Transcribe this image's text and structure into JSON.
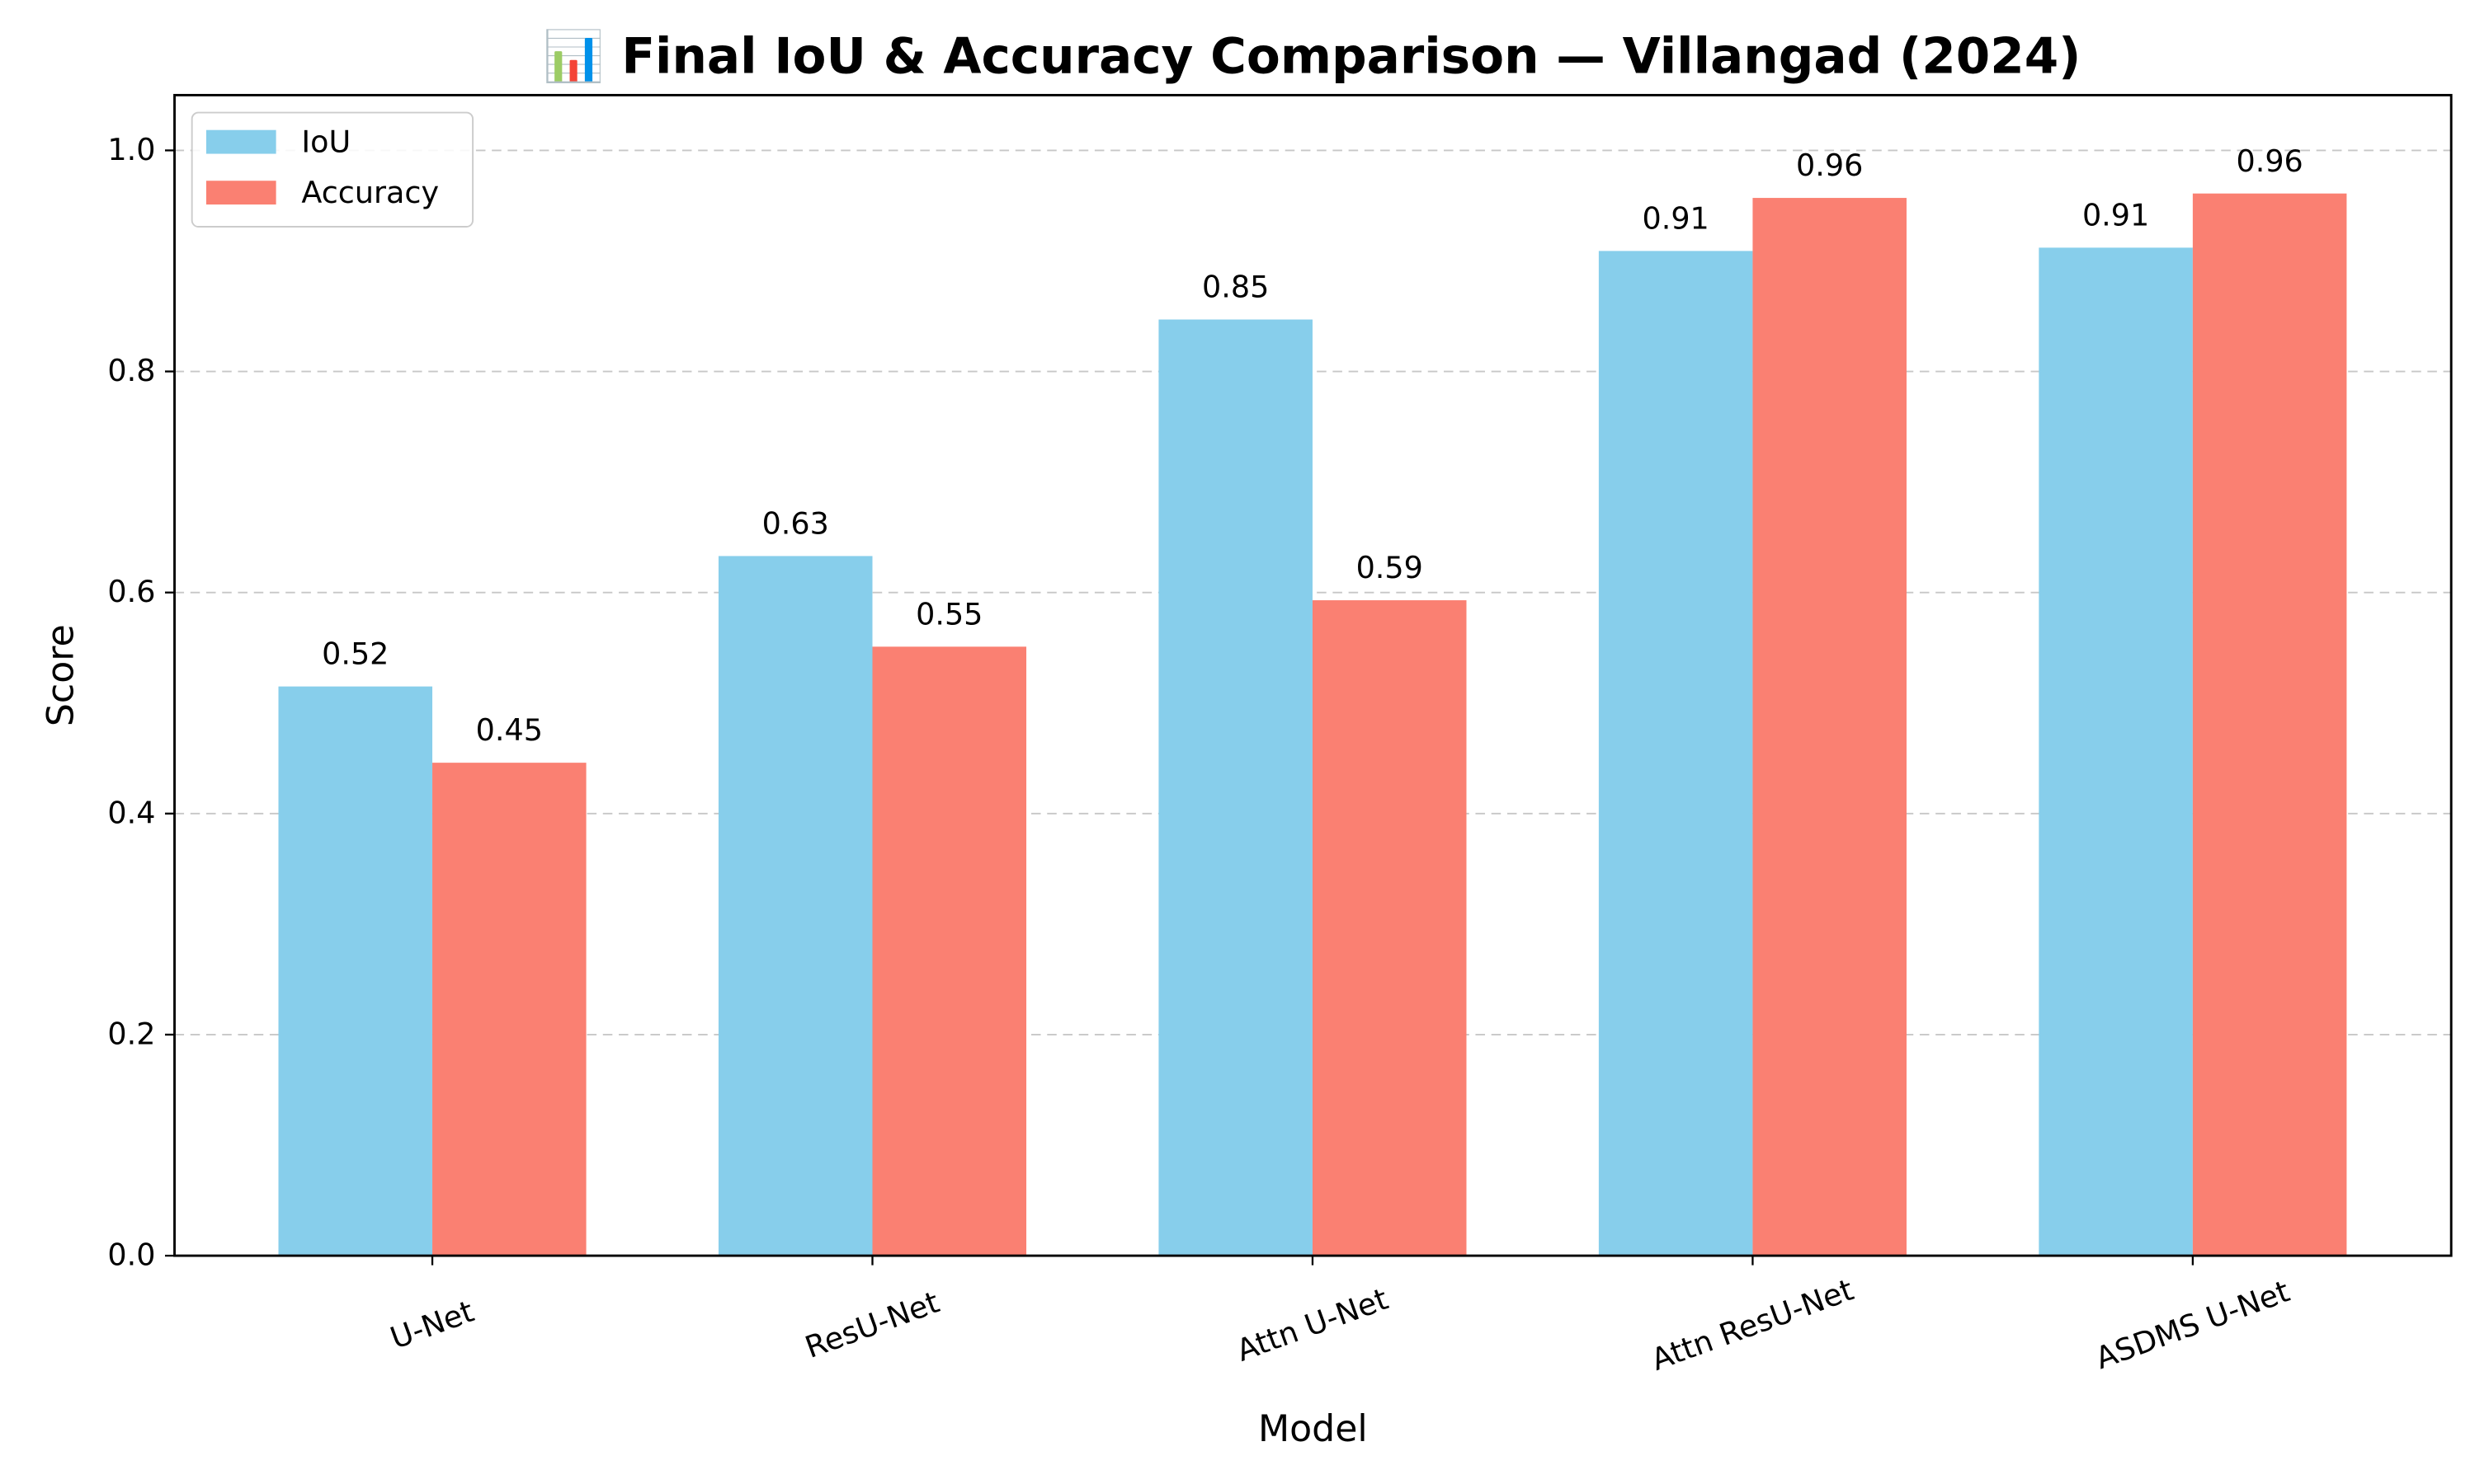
{
  "chart_data": {
    "type": "bar",
    "title": "📊 Final IoU & Accuracy Comparison — Villangad (2024)",
    "xlabel": "Model",
    "ylabel": "Score",
    "ylim": [
      0,
      1.05
    ],
    "yticks": [
      0.0,
      0.2,
      0.4,
      0.6,
      0.8,
      1.0
    ],
    "ytick_labels": [
      "0.0",
      "0.2",
      "0.4",
      "0.6",
      "0.8",
      "1.0"
    ],
    "grid": "y-dashed",
    "legend_position": "top-left",
    "categories": [
      "U-Net",
      "ResU-Net",
      "Attn U-Net",
      "Attn ResU-Net",
      "ASDMS U-Net"
    ],
    "series": [
      {
        "name": "IoU",
        "color": "#87ceeb",
        "values": [
          0.515,
          0.633,
          0.847,
          0.909,
          0.912
        ],
        "labels": [
          "0.52",
          "0.63",
          "0.85",
          "0.91",
          "0.91"
        ]
      },
      {
        "name": "Accuracy",
        "color": "#fa8072",
        "values": [
          0.446,
          0.551,
          0.593,
          0.957,
          0.961
        ],
        "labels": [
          "0.45",
          "0.55",
          "0.59",
          "0.96",
          "0.96"
        ]
      }
    ]
  }
}
